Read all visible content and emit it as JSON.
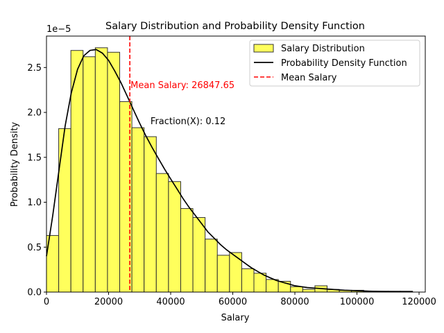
{
  "chart_data": {
    "type": "bar",
    "title": "Salary Distribution and Probability Density Function",
    "xlabel": "Salary",
    "ylabel": "Probability Density",
    "y_scale_label": "1e−5",
    "xlim": [
      0,
      122000
    ],
    "ylim": [
      0,
      2.85
    ],
    "x_ticks": [
      0,
      20000,
      40000,
      60000,
      80000,
      100000,
      120000
    ],
    "x_tick_labels": [
      "0",
      "20000",
      "40000",
      "60000",
      "80000",
      "100000",
      "120000"
    ],
    "y_ticks": [
      0,
      0.5,
      1.0,
      1.5,
      2.0,
      2.5
    ],
    "y_tick_labels": [
      "0.0",
      "0.5",
      "1.0",
      "1.5",
      "2.0",
      "2.5"
    ],
    "histogram": {
      "name": "Salary Distribution",
      "color": "#ffff33",
      "edge_color": "#333333",
      "bin_width": 3930,
      "bin_starts": [
        0,
        3930,
        7860,
        11790,
        15720,
        19650,
        23580,
        27510,
        31440,
        35370,
        39300,
        43230,
        47160,
        51090,
        55020,
        58950,
        62880,
        66810,
        70740,
        74670,
        78600,
        82530,
        86460,
        90390,
        94320,
        98250,
        102180,
        106110,
        110040,
        113970
      ],
      "values": [
        0.63,
        1.82,
        2.69,
        2.62,
        2.72,
        2.67,
        2.12,
        1.83,
        1.73,
        1.32,
        1.23,
        0.93,
        0.83,
        0.59,
        0.41,
        0.44,
        0.26,
        0.21,
        0.14,
        0.12,
        0.06,
        0.03,
        0.07,
        0.03,
        0.02,
        0.02,
        0.01,
        0.01,
        0.01,
        0.01
      ]
    },
    "pdf": {
      "name": "Probability Density Function",
      "color": "#000000",
      "x": [
        0,
        2000,
        4000,
        6000,
        8000,
        10000,
        12000,
        14000,
        16000,
        18000,
        20000,
        22000,
        24000,
        26000,
        28000,
        30000,
        32000,
        34000,
        36000,
        38000,
        40000,
        42000,
        44000,
        46000,
        48000,
        50000,
        52000,
        54000,
        56000,
        58000,
        60000,
        62000,
        64000,
        66000,
        68000,
        70000,
        72000,
        74000,
        76000,
        78000,
        80000,
        82000,
        84000,
        86000,
        88000,
        90000,
        92000,
        94000,
        96000,
        98000,
        100000,
        102000,
        104000,
        106000,
        108000,
        110000,
        112000,
        114000,
        116000,
        118000
      ],
      "y": [
        0.4,
        0.85,
        1.35,
        1.85,
        2.22,
        2.48,
        2.63,
        2.69,
        2.7,
        2.66,
        2.58,
        2.46,
        2.33,
        2.18,
        2.03,
        1.88,
        1.74,
        1.61,
        1.49,
        1.37,
        1.26,
        1.15,
        1.04,
        0.94,
        0.85,
        0.76,
        0.67,
        0.6,
        0.53,
        0.47,
        0.42,
        0.37,
        0.32,
        0.27,
        0.23,
        0.19,
        0.16,
        0.13,
        0.11,
        0.09,
        0.07,
        0.06,
        0.05,
        0.045,
        0.04,
        0.035,
        0.03,
        0.025,
        0.02,
        0.018,
        0.015,
        0.012,
        0.01,
        0.008,
        0.006,
        0.005,
        0.004,
        0.003,
        0.002,
        0.002
      ]
    },
    "mean": {
      "name": "Mean Salary",
      "value": 26847.65,
      "color": "#ff0000",
      "label": "Mean Salary: 26847.65"
    },
    "annotation": {
      "text": "Fraction(X): 0.12",
      "x": 33500,
      "y": 1.87
    },
    "legend": {
      "placement": "top-right",
      "entries": [
        "Salary Distribution",
        "Probability Density Function",
        "Mean Salary"
      ]
    }
  }
}
